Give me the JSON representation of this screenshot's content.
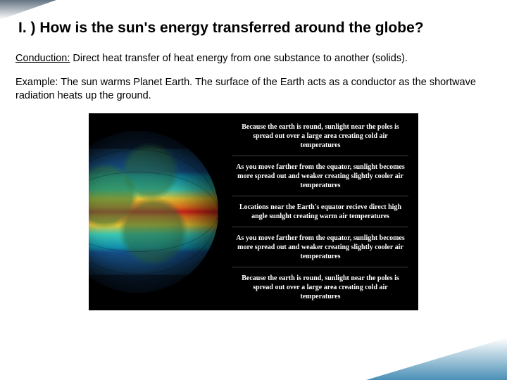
{
  "title": "I. ) How is the sun's energy transferred around the globe?",
  "para1_label": "Conduction:",
  "para1_rest": " Direct heat transfer of heat energy from one substance to another (solids).",
  "para2": "Example: The sun warms Planet Earth. The surface of the Earth acts as a conductor as the shortwave radiation heats up the ground.",
  "diagram": {
    "background_color": "#000000",
    "text_color": "#ffffff",
    "earth": {
      "gradient_stops": [
        "#0a1a2e",
        "#17518a",
        "#1290ad",
        "#39c6b3",
        "#e6c433",
        "#ef7820",
        "#e0241e"
      ],
      "land_color": "#2f7a3c"
    },
    "captions": [
      "Because the earth is round, sunlight near the poles is spread out over a large area creating cold air temperatures",
      "As you move farther from the equator, sunlight becomes more spread out and weaker creating slightly cooler air temperatures",
      "Locations near the Earth's equator recieve direct high angle sunlght creating warm air temperatures",
      "As you move farther from the equator, sunlight becomes more spread out and weaker creating slightly cooler air temperatures",
      "Because the earth is round, sunlight near the poles is spread out over a large area creating cold air temperatures"
    ]
  }
}
